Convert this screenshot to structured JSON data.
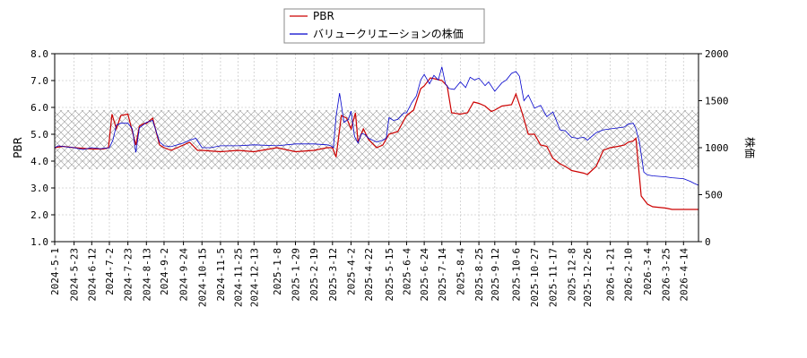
{
  "chart_data": {
    "type": "line",
    "ylabel_left": "PBR",
    "ylabel_right": "株価",
    "xlim": [
      "2024-05-01",
      "2026-05-01"
    ],
    "ylim_left": [
      1.0,
      8.0
    ],
    "ylim_right": [
      0,
      2000
    ],
    "yticks_left": [
      "1.0",
      "2.0",
      "3.0",
      "4.0",
      "5.0",
      "6.0",
      "7.0",
      "8.0"
    ],
    "yticks_right": [
      "0",
      "500",
      "1000",
      "1500",
      "2000"
    ],
    "xticks": [
      "2024-5-1",
      "2024-5-23",
      "2024-6-12",
      "2024-7-2",
      "2024-7-23",
      "2024-8-13",
      "2024-9-2",
      "2024-9-24",
      "2024-10-15",
      "2024-11-5",
      "2024-11-25",
      "2024-12-13",
      "2025-1-8",
      "2025-1-29",
      "2025-2-19",
      "2025-3-12",
      "2025-4-2",
      "2025-4-22",
      "2025-5-15",
      "2025-6-4",
      "2025-6-24",
      "2025-7-14",
      "2025-8-4",
      "2025-8-25",
      "2025-9-12",
      "2025-10-6",
      "2025-10-27",
      "2025-11-17",
      "2025-12-8",
      "2025-12-26",
      "2026-1-21",
      "2026-2-10",
      "2026-3-4",
      "2026-3-25",
      "2026-4-14"
    ],
    "band_left": [
      3.7,
      5.9
    ],
    "grid": true,
    "legend_position": "top-center",
    "colors": {
      "pbr": "#cc0000",
      "price": "#0000cc"
    },
    "series": [
      {
        "name": "PBR",
        "axis": "left",
        "x": [
          "2024-05-01",
          "2024-05-10",
          "2024-05-23",
          "2024-06-12",
          "2024-06-25",
          "2024-07-01",
          "2024-07-05",
          "2024-07-10",
          "2024-07-15",
          "2024-07-23",
          "2024-08-01",
          "2024-08-05",
          "2024-08-10",
          "2024-08-13",
          "2024-08-20",
          "2024-08-28",
          "2024-09-02",
          "2024-09-10",
          "2024-09-24",
          "2024-10-01",
          "2024-10-10",
          "2024-10-15",
          "2024-11-05",
          "2024-11-25",
          "2024-12-13",
          "2025-01-08",
          "2025-01-29",
          "2025-02-19",
          "2025-03-06",
          "2025-03-12",
          "2025-03-16",
          "2025-03-22",
          "2025-03-28",
          "2025-04-02",
          "2025-04-07",
          "2025-04-10",
          "2025-04-16",
          "2025-04-22",
          "2025-05-01",
          "2025-05-08",
          "2025-05-15",
          "2025-05-25",
          "2025-06-04",
          "2025-06-12",
          "2025-06-20",
          "2025-06-24",
          "2025-07-01",
          "2025-07-08",
          "2025-07-14",
          "2025-07-20",
          "2025-07-25",
          "2025-08-04",
          "2025-08-12",
          "2025-08-19",
          "2025-08-25",
          "2025-09-01",
          "2025-09-08",
          "2025-09-12",
          "2025-09-20",
          "2025-10-01",
          "2025-10-06",
          "2025-10-13",
          "2025-10-20",
          "2025-10-27",
          "2025-11-03",
          "2025-11-10",
          "2025-11-17",
          "2025-11-25",
          "2025-12-01",
          "2025-12-08",
          "2025-12-15",
          "2025-12-22",
          "2025-12-26",
          "2026-01-05",
          "2026-01-13",
          "2026-01-21",
          "2026-01-30",
          "2026-02-06",
          "2026-02-10",
          "2026-02-16",
          "2026-02-19",
          "2026-02-25",
          "2026-03-04",
          "2026-03-10",
          "2026-03-25",
          "2026-04-01",
          "2026-04-14",
          "2026-04-25",
          "2026-05-01"
        ],
        "values": [
          4.5,
          4.55,
          4.5,
          4.45,
          4.45,
          4.5,
          5.75,
          5.2,
          5.7,
          5.75,
          4.6,
          5.3,
          5.4,
          5.4,
          5.6,
          4.6,
          4.5,
          4.4,
          4.6,
          4.7,
          4.4,
          4.4,
          4.35,
          4.4,
          4.35,
          4.5,
          4.35,
          4.4,
          4.5,
          4.5,
          4.15,
          5.7,
          5.6,
          5.2,
          5.8,
          4.7,
          5.2,
          4.8,
          4.5,
          4.6,
          5.0,
          5.1,
          5.7,
          5.9,
          6.7,
          6.8,
          7.1,
          7.05,
          7.0,
          6.8,
          5.8,
          5.75,
          5.8,
          6.2,
          6.15,
          6.05,
          5.85,
          5.9,
          6.05,
          6.1,
          6.5,
          5.8,
          5.0,
          5.0,
          4.6,
          4.55,
          4.1,
          3.9,
          3.8,
          3.65,
          3.6,
          3.55,
          3.5,
          3.8,
          4.4,
          4.5,
          4.55,
          4.6,
          4.7,
          4.75,
          4.85,
          2.7,
          2.4,
          2.3,
          2.25,
          2.2,
          2.2,
          2.2,
          2.2
        ]
      },
      {
        "name": "バリュークリエーションの株価",
        "axis": "right",
        "x": [
          "2024-05-01",
          "2024-05-05",
          "2024-05-12",
          "2024-05-23",
          "2024-06-02",
          "2024-06-12",
          "2024-06-22",
          "2024-07-02",
          "2024-07-06",
          "2024-07-10",
          "2024-07-15",
          "2024-07-23",
          "2024-07-28",
          "2024-08-01",
          "2024-08-05",
          "2024-08-09",
          "2024-08-13",
          "2024-08-20",
          "2024-08-28",
          "2024-09-02",
          "2024-09-10",
          "2024-09-24",
          "2024-10-01",
          "2024-10-08",
          "2024-10-15",
          "2024-10-25",
          "2024-11-05",
          "2024-11-25",
          "2024-12-13",
          "2025-01-08",
          "2025-01-29",
          "2025-02-19",
          "2025-03-06",
          "2025-03-10",
          "2025-03-13",
          "2025-03-16",
          "2025-03-20",
          "2025-03-25",
          "2025-03-30",
          "2025-04-02",
          "2025-04-06",
          "2025-04-10",
          "2025-04-14",
          "2025-04-18",
          "2025-04-22",
          "2025-05-01",
          "2025-05-08",
          "2025-05-12",
          "2025-05-15",
          "2025-05-20",
          "2025-05-25",
          "2025-06-01",
          "2025-06-04",
          "2025-06-10",
          "2025-06-15",
          "2025-06-20",
          "2025-06-24",
          "2025-06-30",
          "2025-07-05",
          "2025-07-10",
          "2025-07-14",
          "2025-07-18",
          "2025-07-22",
          "2025-07-28",
          "2025-08-04",
          "2025-08-10",
          "2025-08-15",
          "2025-08-20",
          "2025-08-25",
          "2025-09-01",
          "2025-09-05",
          "2025-09-12",
          "2025-09-20",
          "2025-09-25",
          "2025-10-01",
          "2025-10-06",
          "2025-10-10",
          "2025-10-15",
          "2025-10-20",
          "2025-10-27",
          "2025-11-03",
          "2025-11-10",
          "2025-11-17",
          "2025-11-25",
          "2025-12-01",
          "2025-12-08",
          "2025-12-15",
          "2025-12-22",
          "2025-12-26",
          "2026-01-05",
          "2026-01-13",
          "2026-01-21",
          "2026-01-30",
          "2026-02-06",
          "2026-02-10",
          "2026-02-16",
          "2026-02-19",
          "2026-02-23",
          "2026-02-28",
          "2026-03-04",
          "2026-03-10",
          "2026-03-25",
          "2026-04-01",
          "2026-04-14",
          "2026-04-22",
          "2026-04-26",
          "2026-05-01"
        ],
        "values": [
          1000,
          1020,
          1010,
          1000,
          980,
          1000,
          990,
          1000,
          1080,
          1240,
          1260,
          1260,
          1200,
          950,
          1210,
          1240,
          1270,
          1290,
          1060,
          1020,
          1010,
          1050,
          1080,
          1100,
          1000,
          1000,
          1020,
          1020,
          1030,
          1020,
          1040,
          1040,
          1030,
          1020,
          1000,
          1330,
          1580,
          1270,
          1300,
          1390,
          1120,
          1050,
          1150,
          1140,
          1100,
          1060,
          1080,
          1100,
          1320,
          1290,
          1300,
          1370,
          1370,
          1480,
          1550,
          1720,
          1780,
          1680,
          1770,
          1720,
          1860,
          1680,
          1630,
          1620,
          1700,
          1640,
          1750,
          1720,
          1740,
          1660,
          1700,
          1600,
          1690,
          1720,
          1790,
          1810,
          1760,
          1500,
          1560,
          1420,
          1450,
          1330,
          1380,
          1190,
          1180,
          1110,
          1100,
          1110,
          1080,
          1160,
          1190,
          1200,
          1210,
          1220,
          1250,
          1260,
          1200,
          1060,
          740,
          710,
          700,
          690,
          680,
          670,
          640,
          620,
          600
        ]
      }
    ]
  },
  "legend": {
    "pbr_label": "PBR",
    "price_label": "バリュークリエーションの株価"
  }
}
